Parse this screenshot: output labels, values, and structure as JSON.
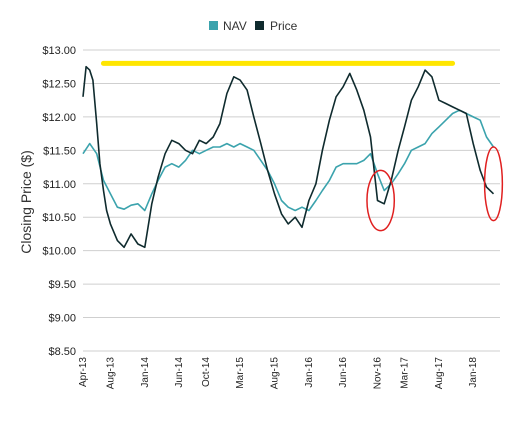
{
  "chart_data": {
    "type": "line",
    "ylabel": "Closing Price ($)",
    "xlabel": "",
    "ylim": [
      8.5,
      13.0
    ],
    "xlim": [
      "2013-04-01",
      "2018-04-30"
    ],
    "grid": "horizontal",
    "legend_position": "top-center",
    "y_ticks": [
      "$13.00",
      "$12.50",
      "$12.00",
      "$11.50",
      "$11.00",
      "$10.50",
      "$10.00",
      "$9.50",
      "$9.00",
      "$8.50"
    ],
    "y_tick_values": [
      13.0,
      12.5,
      12.0,
      11.5,
      11.0,
      10.5,
      10.0,
      9.5,
      9.0,
      8.5
    ],
    "x_ticks": [
      "Apr-13",
      "Aug-13",
      "Jan-14",
      "Jun-14",
      "Oct-14",
      "Mar-15",
      "Aug-15",
      "Jan-16",
      "Jun-16",
      "Nov-16",
      "Mar-17",
      "Aug-17",
      "Jan-18"
    ],
    "x_tick_dates": [
      "2013-04-01",
      "2013-08-01",
      "2014-01-01",
      "2014-06-01",
      "2014-10-01",
      "2015-03-01",
      "2015-08-01",
      "2016-01-01",
      "2016-06-01",
      "2016-11-01",
      "2017-03-01",
      "2017-08-01",
      "2018-01-01"
    ],
    "series": [
      {
        "name": "NAV",
        "color": "#3ba3ad",
        "x": [
          "2013-04-01",
          "2013-05-01",
          "2013-06-01",
          "2013-07-01",
          "2013-08-01",
          "2013-09-01",
          "2013-10-01",
          "2013-11-01",
          "2013-12-01",
          "2014-01-01",
          "2014-02-01",
          "2014-03-01",
          "2014-04-01",
          "2014-05-01",
          "2014-06-01",
          "2014-07-01",
          "2014-08-01",
          "2014-09-01",
          "2014-10-01",
          "2014-11-01",
          "2014-12-01",
          "2015-01-01",
          "2015-02-01",
          "2015-03-01",
          "2015-04-01",
          "2015-05-01",
          "2015-06-01",
          "2015-07-01",
          "2015-08-01",
          "2015-09-01",
          "2015-10-01",
          "2015-11-01",
          "2015-12-01",
          "2016-01-01",
          "2016-02-01",
          "2016-03-01",
          "2016-04-01",
          "2016-05-01",
          "2016-06-01",
          "2016-07-01",
          "2016-08-01",
          "2016-09-01",
          "2016-10-01",
          "2016-11-01",
          "2016-12-01",
          "2017-01-01",
          "2017-02-01",
          "2017-03-01",
          "2017-04-01",
          "2017-05-01",
          "2017-06-01",
          "2017-07-01",
          "2017-08-01",
          "2017-09-01",
          "2017-10-01",
          "2017-11-01",
          "2017-12-01",
          "2018-01-01",
          "2018-02-01",
          "2018-03-01",
          "2018-04-01"
        ],
        "values": [
          11.45,
          11.6,
          11.45,
          11.05,
          10.85,
          10.65,
          10.62,
          10.68,
          10.7,
          10.6,
          10.85,
          11.05,
          11.25,
          11.3,
          11.25,
          11.35,
          11.5,
          11.45,
          11.5,
          11.55,
          11.55,
          11.6,
          11.55,
          11.6,
          11.55,
          11.5,
          11.35,
          11.2,
          11.0,
          10.75,
          10.65,
          10.6,
          10.65,
          10.6,
          10.75,
          10.9,
          11.05,
          11.25,
          11.3,
          11.3,
          11.3,
          11.35,
          11.45,
          11.15,
          10.9,
          11.0,
          11.15,
          11.3,
          11.5,
          11.55,
          11.6,
          11.75,
          11.85,
          11.95,
          12.05,
          12.1,
          12.05,
          12.0,
          11.95,
          11.7,
          11.55
        ]
      },
      {
        "name": "Price",
        "color": "#0f2b2e",
        "x": [
          "2013-04-01",
          "2013-04-15",
          "2013-05-01",
          "2013-05-15",
          "2013-06-01",
          "2013-06-15",
          "2013-07-01",
          "2013-07-15",
          "2013-08-01",
          "2013-09-01",
          "2013-10-01",
          "2013-11-01",
          "2013-12-01",
          "2014-01-01",
          "2014-02-01",
          "2014-03-01",
          "2014-04-01",
          "2014-05-01",
          "2014-06-01",
          "2014-07-01",
          "2014-08-01",
          "2014-09-01",
          "2014-10-01",
          "2014-11-01",
          "2014-12-01",
          "2015-01-01",
          "2015-02-01",
          "2015-03-01",
          "2015-04-01",
          "2015-05-01",
          "2015-06-01",
          "2015-07-01",
          "2015-08-01",
          "2015-09-01",
          "2015-10-01",
          "2015-11-01",
          "2015-12-01",
          "2016-01-01",
          "2016-02-01",
          "2016-03-01",
          "2016-04-01",
          "2016-05-01",
          "2016-06-01",
          "2016-07-01",
          "2016-08-01",
          "2016-09-01",
          "2016-10-01",
          "2016-11-01",
          "2016-12-01",
          "2017-01-01",
          "2017-02-01",
          "2017-03-01",
          "2017-04-01",
          "2017-05-01",
          "2017-06-01",
          "2017-07-01",
          "2017-08-01",
          "2017-09-01",
          "2017-10-01",
          "2017-11-01",
          "2017-12-01",
          "2018-01-01",
          "2018-02-01",
          "2018-03-01",
          "2018-04-01"
        ],
        "values": [
          12.3,
          12.75,
          12.7,
          12.55,
          11.9,
          11.3,
          10.9,
          10.6,
          10.4,
          10.15,
          10.05,
          10.25,
          10.1,
          10.05,
          10.7,
          11.1,
          11.45,
          11.65,
          11.6,
          11.5,
          11.45,
          11.65,
          11.6,
          11.7,
          11.9,
          12.35,
          12.6,
          12.55,
          12.4,
          12.0,
          11.6,
          11.2,
          10.85,
          10.55,
          10.4,
          10.5,
          10.35,
          10.75,
          11.0,
          11.5,
          11.95,
          12.3,
          12.45,
          12.65,
          12.4,
          12.1,
          11.7,
          10.75,
          10.7,
          11.05,
          11.5,
          11.85,
          12.25,
          12.45,
          12.7,
          12.6,
          12.25,
          12.2,
          12.15,
          12.1,
          12.05,
          11.6,
          11.2,
          10.95,
          10.85
        ]
      }
    ],
    "annotations": [
      {
        "type": "highlight-line",
        "color": "#ffe600",
        "y": 12.8,
        "x_from": "2013-07-01",
        "x_to": "2017-10-01"
      },
      {
        "type": "ellipse",
        "color": "#e02020",
        "center_date": "2016-11-15",
        "center_y": 10.75,
        "span_months": 2.0,
        "span_y": 0.45
      },
      {
        "type": "ellipse",
        "color": "#e02020",
        "center_date": "2018-04-01",
        "center_y": 11.0,
        "span_months": 1.3,
        "span_y": 0.55
      }
    ]
  }
}
